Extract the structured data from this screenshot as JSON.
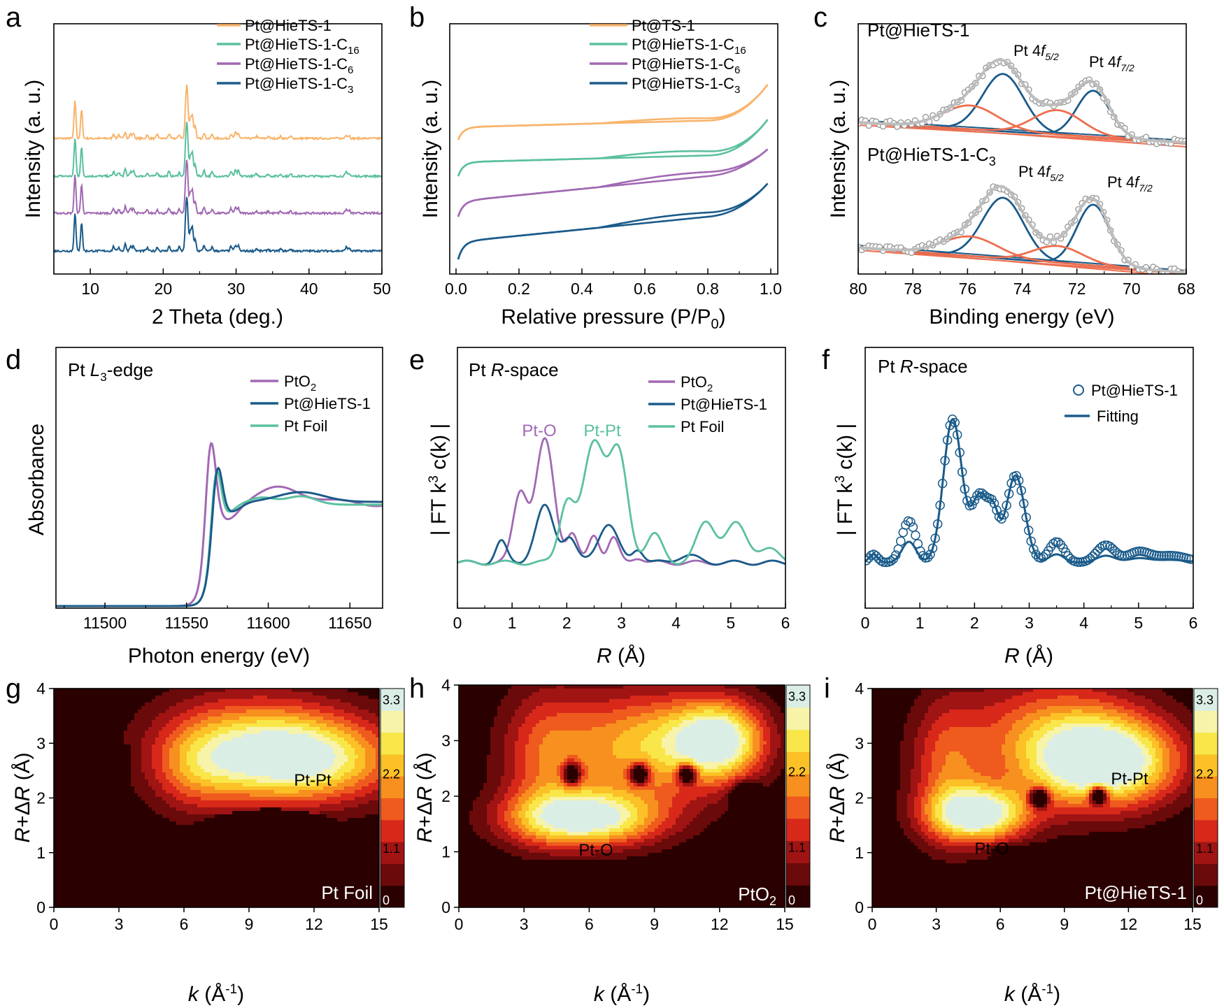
{
  "colors": {
    "orange": "#f8b46b",
    "green": "#5bc0a0",
    "purple": "#a169b3",
    "blue": "#1a5b8a",
    "red": "#ee6e4e",
    "gray": "#bdbdbd"
  },
  "chart_data": [
    {
      "panel": "a",
      "type": "line",
      "xlabel": "2 Theta (deg.)",
      "ylabel": "Intensity (a. u.)",
      "xlim": [
        5,
        50
      ],
      "xticks": [
        "10",
        "20",
        "30",
        "40",
        "50"
      ],
      "peaks_2theta": [
        7.9,
        8.8,
        13.2,
        13.9,
        14.8,
        15.5,
        15.9,
        17.8,
        19.2,
        20.8,
        22.2,
        23.1,
        23.3,
        23.7,
        24.0,
        24.4,
        25.6,
        26.7,
        29.3,
        29.9,
        30.3,
        32.8,
        34.4,
        36.1,
        37.5,
        45.1,
        45.5
      ],
      "series": [
        {
          "name": "Pt@HieTS-1",
          "color": "orange"
        },
        {
          "name": "Pt@HieTS-1-C",
          "subscript": "16",
          "color": "green"
        },
        {
          "name": "Pt@HieTS-1-C",
          "subscript": "6",
          "color": "purple"
        },
        {
          "name": "Pt@HieTS-1-C",
          "subscript": "3",
          "color": "blue"
        }
      ]
    },
    {
      "panel": "b",
      "type": "line",
      "xlabel": "Relative pressure (P/P",
      "xlabel_sub": "0",
      "xlabel_end": ")",
      "ylabel": "Intensity (a. u.)",
      "xlim": [
        0,
        1.0
      ],
      "xticks": [
        "0.0",
        "0.2",
        "0.4",
        "0.6",
        "0.8",
        "1.0"
      ],
      "series": [
        {
          "name": "Pt@TS-1",
          "color": "orange"
        },
        {
          "name": "Pt@HieTS-1-C",
          "subscript": "16",
          "color": "green"
        },
        {
          "name": "Pt@HieTS-1-C",
          "subscript": "6",
          "color": "purple"
        },
        {
          "name": "Pt@HieTS-1-C",
          "subscript": "3",
          "color": "blue"
        }
      ]
    },
    {
      "panel": "c",
      "type": "scatter",
      "xlabel": "Binding energy (eV)",
      "ylabel": "Intensity (a. u.)",
      "xlim": [
        80,
        68
      ],
      "xticks": [
        "80",
        "78",
        "76",
        "74",
        "72",
        "70",
        "68"
      ],
      "samples": [
        "Pt@HieTS-1",
        "Pt@HieTS-1-C3"
      ],
      "sample_labels": {
        "top": "Pt@HieTS-1",
        "bottom_main": "Pt@HieTS-1-C",
        "bottom_sub": "3"
      },
      "peaks": {
        "pt4f52": 74.7,
        "pt4f72": 71.4,
        "satellite_1": 75.9,
        "satellite_2": 72.7
      },
      "peak_labels": {
        "pt": "Pt 4",
        "f": "f",
        "s52": "5/2",
        "s72": "7/2"
      }
    },
    {
      "panel": "d",
      "type": "line",
      "title_main": "Pt ",
      "title_italic": "L",
      "title_sub": "3",
      "title_end": "-edge",
      "xlabel": "Photon energy (eV)",
      "ylabel": "Absorbance",
      "xlim": [
        11470,
        11670
      ],
      "xticks": [
        "11500",
        "11550",
        "11600",
        "11650"
      ],
      "series": [
        {
          "name": "PtO",
          "subscript": "2",
          "color": "purple",
          "edge": 11561,
          "whiteline": 11564
        },
        {
          "name": "Pt@HieTS-1",
          "color": "blue",
          "edge": 11564,
          "whiteline": 11568
        },
        {
          "name": "Pt Foil",
          "color": "green",
          "edge": 11564,
          "whiteline": 11567
        }
      ]
    },
    {
      "panel": "e",
      "type": "line",
      "title_main": "Pt ",
      "title_italic": "R",
      "title_end": "-space",
      "xlabel_italic": "R",
      "xlabel": " (Å)",
      "ylabel": "| FT k",
      "ylabel_sup": "3",
      "ylabel_end": " c(k) |",
      "xlim": [
        0,
        6
      ],
      "xticks": [
        "0",
        "1",
        "2",
        "3",
        "4",
        "5",
        "6"
      ],
      "annotations": [
        {
          "text": "Pt-O",
          "x": 1.6,
          "color": "purple"
        },
        {
          "text": "Pt-Pt",
          "x": 2.5,
          "color": "green"
        }
      ],
      "series": [
        {
          "name": "PtO",
          "subscript": "2",
          "color": "purple"
        },
        {
          "name": "Pt@HieTS-1",
          "color": "blue"
        },
        {
          "name": "Pt Foil",
          "color": "green"
        }
      ]
    },
    {
      "panel": "f",
      "type": "line",
      "title_main": "Pt ",
      "title_italic": "R",
      "title_end": "-space",
      "xlabel_italic": "R",
      "xlabel": " (Å)",
      "ylabel": "| FT k",
      "ylabel_sup": "3",
      "ylabel_end": " c(k) |",
      "xlim": [
        0,
        6
      ],
      "xticks": [
        "0",
        "1",
        "2",
        "3",
        "4",
        "5",
        "6"
      ],
      "series": [
        {
          "name": "Pt@HieTS-1",
          "style": "open-circles",
          "color": "blue"
        },
        {
          "name": "Fitting",
          "style": "line",
          "color": "blue"
        }
      ]
    },
    {
      "panel": "g",
      "type": "heatmap",
      "label": "Pt Foil",
      "annotations": [
        "Pt-Pt"
      ],
      "xlabel_italic": "k",
      "xlabel": " (Å",
      "xlabel_sup": "-1",
      "xlabel_end": ")",
      "ylabel_italic": "R",
      "ylabel_mid": "+Δ",
      "ylabel_italic2": "R",
      "ylabel_end": " (Å)",
      "xlim": [
        0,
        15
      ],
      "ylim": [
        0,
        4
      ],
      "xticks": [
        "0",
        "3",
        "6",
        "9",
        "12",
        "15"
      ],
      "yticks": [
        "0",
        "1",
        "2",
        "3",
        "4"
      ],
      "colorbar_ticks": [
        "3.3",
        "2.2",
        "1.1",
        "0"
      ],
      "maxima": [
        {
          "k": 11.5,
          "R": 2.7,
          "label": "Pt-Pt"
        }
      ]
    },
    {
      "panel": "h",
      "type": "heatmap",
      "label_main": "PtO",
      "label_sub": "2",
      "annotations": [
        "Pt-O"
      ],
      "xlim": [
        0,
        15
      ],
      "ylim": [
        0,
        4
      ],
      "xticks": [
        "0",
        "3",
        "6",
        "9",
        "12",
        "15"
      ],
      "yticks": [
        "0",
        "1",
        "2",
        "3",
        "4"
      ],
      "colorbar_ticks": [
        "3.3",
        "2.2",
        "1.1",
        "0"
      ],
      "maxima": [
        {
          "k": 6.0,
          "R": 1.6,
          "label": "Pt-O"
        },
        {
          "k": 12.0,
          "R": 3.0
        }
      ]
    },
    {
      "panel": "i",
      "type": "heatmap",
      "label": "Pt@HieTS-1",
      "annotations": [
        "Pt-O",
        "Pt-Pt"
      ],
      "xlim": [
        0,
        15
      ],
      "ylim": [
        0,
        4
      ],
      "xticks": [
        "0",
        "3",
        "6",
        "9",
        "12",
        "15"
      ],
      "yticks": [
        "0",
        "1",
        "2",
        "3",
        "4"
      ],
      "colorbar_ticks": [
        "3.3",
        "2.2",
        "1.1",
        "0"
      ],
      "maxima": [
        {
          "k": 5.0,
          "R": 1.6,
          "label": "Pt-O"
        },
        {
          "k": 11.5,
          "R": 2.65,
          "label": "Pt-Pt"
        }
      ]
    }
  ],
  "panel_letters": [
    "a",
    "b",
    "c",
    "d",
    "e",
    "f",
    "g",
    "h",
    "i"
  ]
}
